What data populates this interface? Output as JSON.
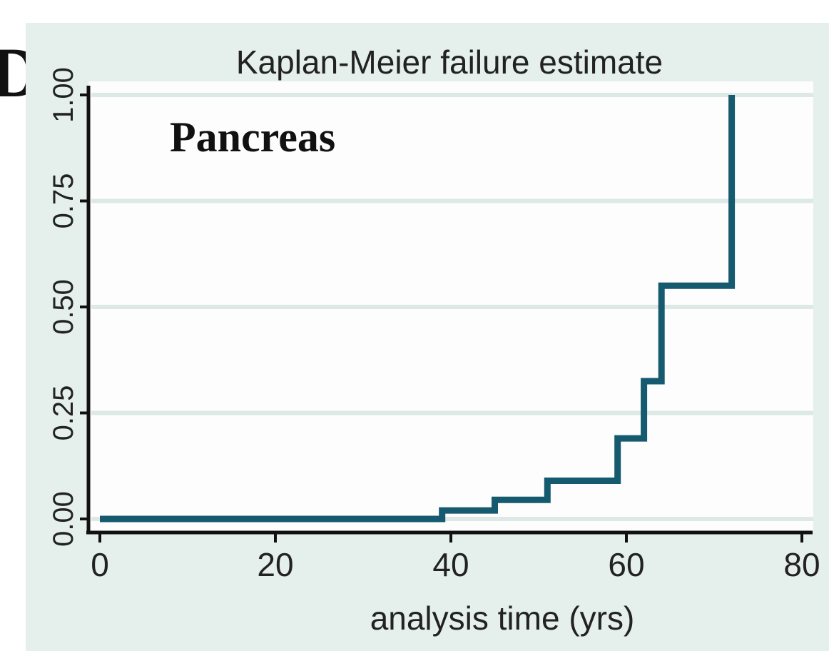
{
  "panel_letter": "D",
  "chart_data": {
    "type": "line",
    "step": true,
    "title": "Kaplan-Meier failure estimate",
    "annotation": "Pancreas",
    "xlabel": "analysis time (yrs)",
    "ylabel": "",
    "xlim": [
      0,
      80
    ],
    "ylim": [
      0,
      1
    ],
    "x_ticks": [
      0,
      20,
      40,
      60,
      80
    ],
    "x_tick_labels": [
      "0",
      "20",
      "40",
      "60",
      "80"
    ],
    "y_ticks": [
      0,
      0.25,
      0.5,
      0.75,
      1
    ],
    "y_tick_labels": [
      "0.00",
      "0.25",
      "0.50",
      "0.75",
      "1.00"
    ],
    "grid": "horizontal",
    "legend": "none",
    "series": [
      {
        "x": [
          0,
          39,
          45,
          51,
          59,
          62,
          64,
          72
        ],
        "y": [
          0,
          0.02,
          0.045,
          0.09,
          0.19,
          0.325,
          0.55,
          1.0
        ]
      }
    ]
  },
  "colors": {
    "background": "#e5efec",
    "plot_area": "#fcfdfc",
    "gridline": "#dde9e6",
    "axis": "#111111",
    "series": "#155a6e",
    "text": "#222222"
  }
}
